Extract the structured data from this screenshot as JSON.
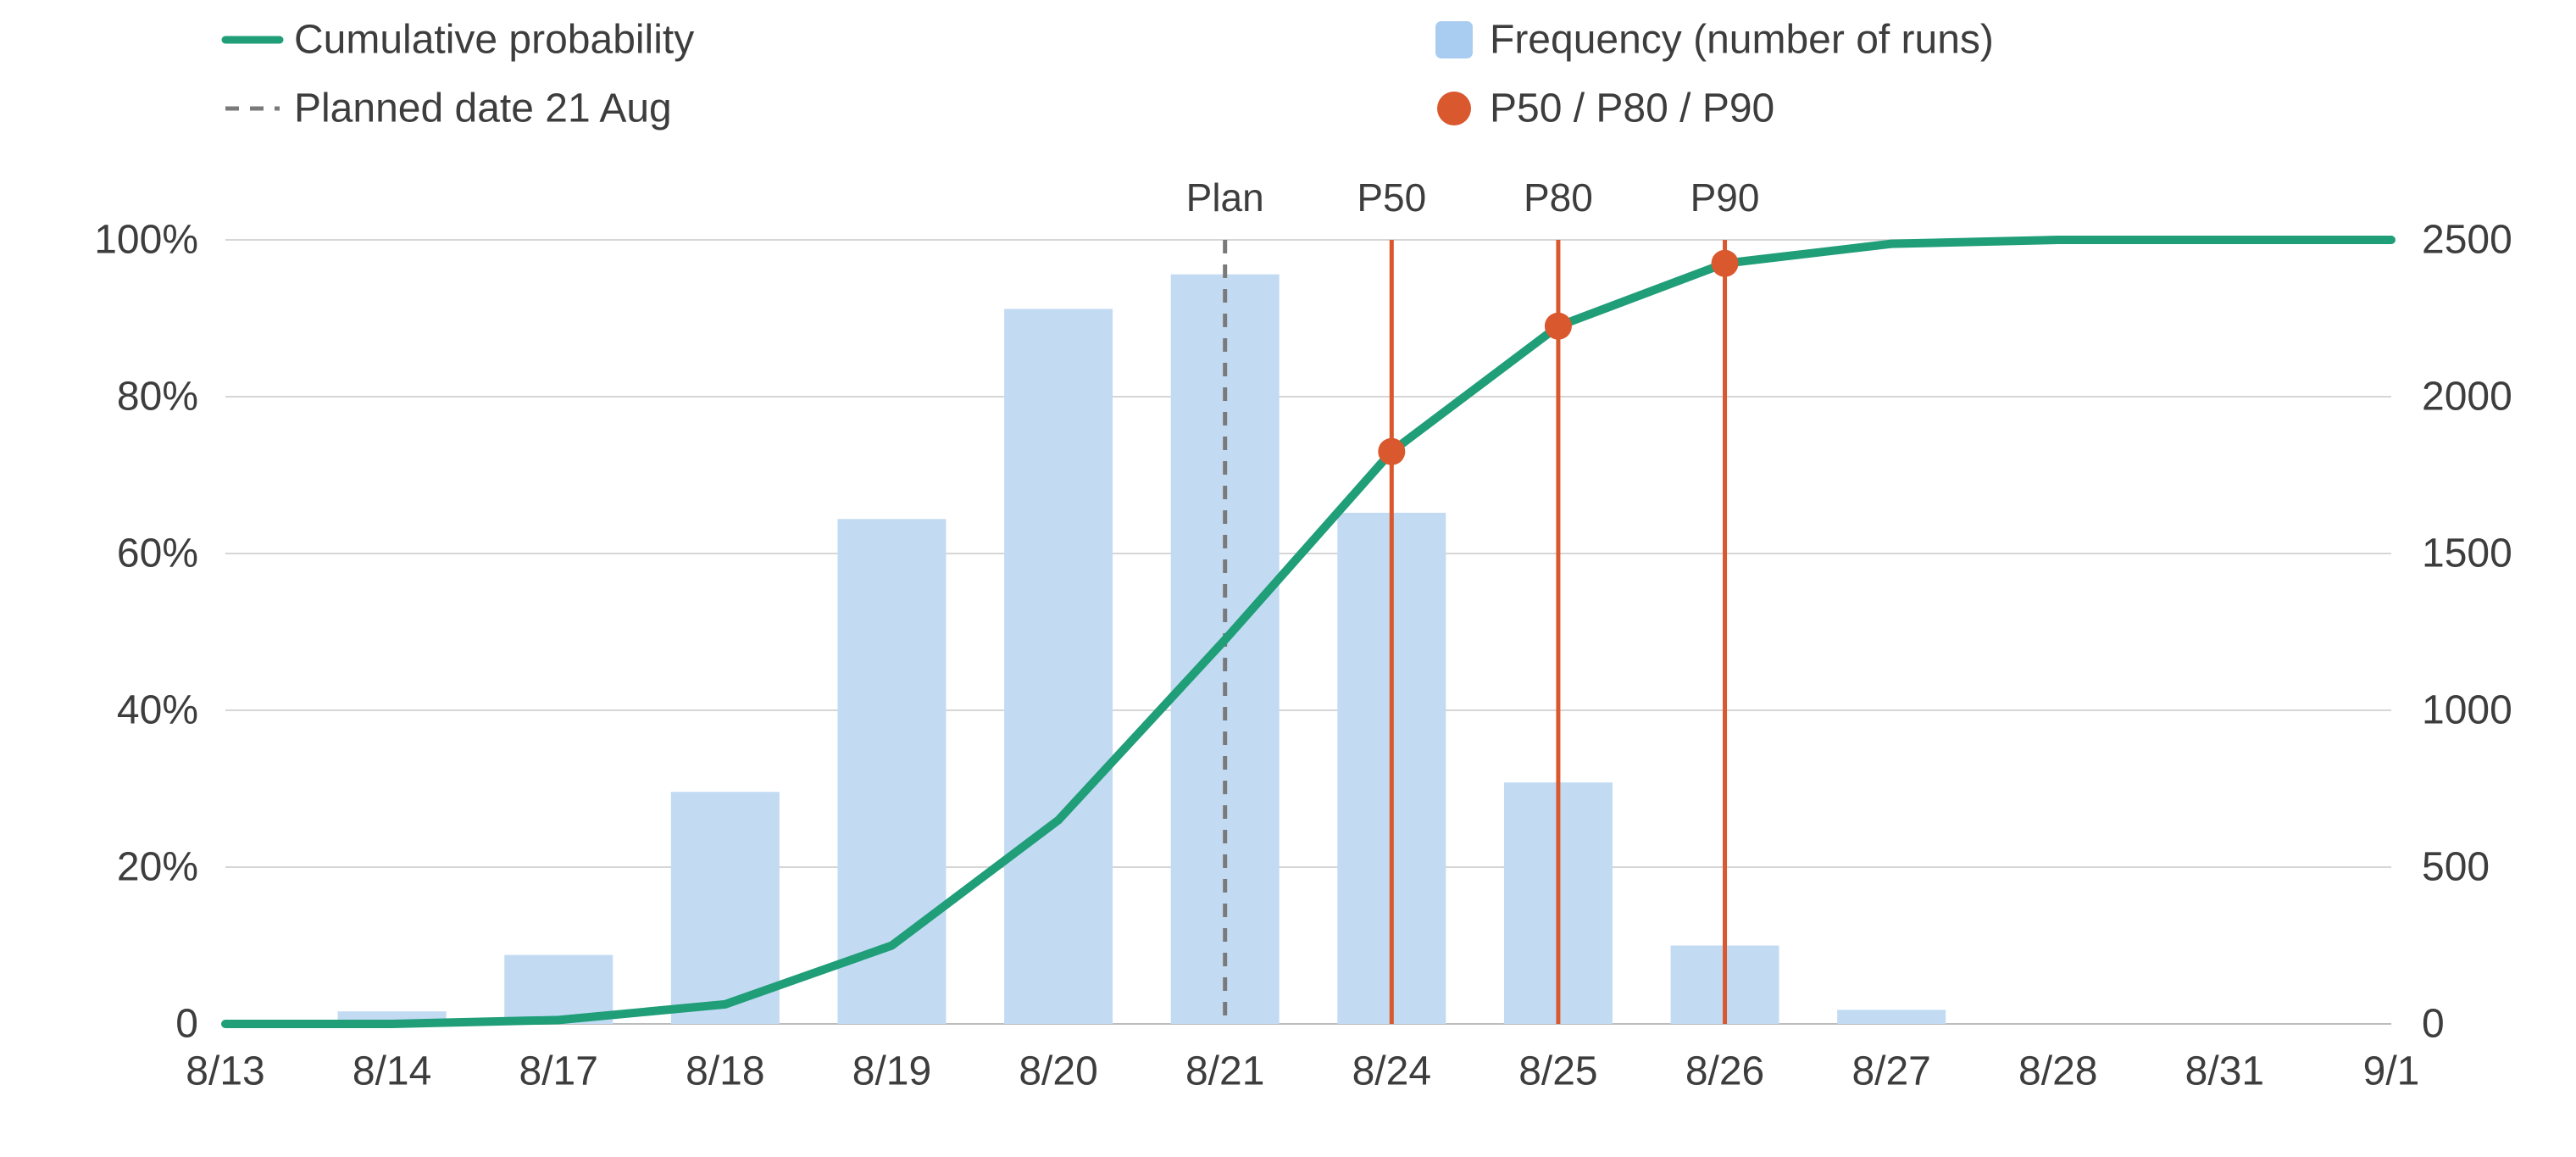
{
  "chart_data": {
    "type": "bar",
    "categories": [
      "8/13",
      "8/14",
      "8/17",
      "8/18",
      "8/19",
      "8/20",
      "8/21",
      "8/24",
      "8/25",
      "8/26",
      "8/27",
      "8/28",
      "8/31",
      "9/1"
    ],
    "series": [
      {
        "name": "Frequency (number of runs)",
        "type": "bar",
        "axis": "right",
        "values": [
          null,
          40,
          220,
          740,
          1610,
          2280,
          2390,
          1630,
          770,
          250,
          45,
          null,
          null,
          null
        ]
      },
      {
        "name": "Cumulative probability",
        "type": "line",
        "axis": "left",
        "values": [
          0,
          0,
          0.5,
          2.5,
          10,
          26,
          49,
          73,
          89,
          97,
          99.5,
          100,
          100,
          100
        ]
      }
    ],
    "percentiles": {
      "name": "P50 / P80 / P90",
      "points": [
        {
          "label": "P50",
          "category": "8/24",
          "value": 73
        },
        {
          "label": "P80",
          "category": "8/25",
          "value": 89
        },
        {
          "label": "P90",
          "category": "8/26",
          "value": 97
        }
      ]
    },
    "plan": {
      "label": "Plan",
      "category": "8/21",
      "legend": "Planned date 21 Aug"
    },
    "y_left": {
      "ylim": [
        0,
        100
      ],
      "ticks": [
        0,
        20,
        40,
        60,
        80,
        100
      ],
      "tick_labels": [
        "0",
        "20%",
        "40%",
        "60%",
        "80%",
        "100%"
      ]
    },
    "y_right": {
      "ylim": [
        0,
        2500
      ],
      "ticks": [
        0,
        500,
        1000,
        1500,
        2000,
        2500
      ],
      "tick_labels": [
        "0",
        "500",
        "1000",
        "1500",
        "2000",
        "2500"
      ]
    },
    "grid": true,
    "legend_position": "top",
    "colors": {
      "line": "#1f9e78",
      "bar": "#c2dbf3",
      "legend_bar": "#a9cdf0",
      "marker": "#d9582e",
      "plan": "#7a7a7a",
      "grid": "#d6d6d6",
      "text": "#3d3d3d"
    }
  }
}
